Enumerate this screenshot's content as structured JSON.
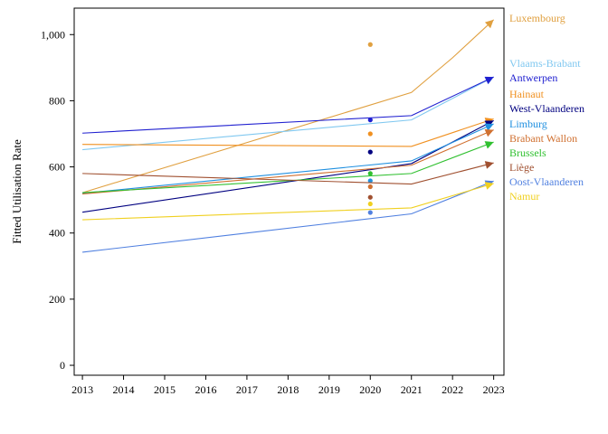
{
  "chart_data": {
    "type": "line",
    "title": "",
    "xlabel": "",
    "ylabel": "Fitted Utilisation Rate",
    "x": [
      2013,
      2014,
      2015,
      2016,
      2017,
      2018,
      2019,
      2020,
      2021,
      2022,
      2023
    ],
    "xlim": [
      2012.8,
      2023.25
    ],
    "ylim": [
      -30,
      1080
    ],
    "yticks": [
      0,
      200,
      400,
      600,
      800,
      1000
    ],
    "ytick_labels": [
      "0",
      "200",
      "400",
      "600",
      "800",
      "1,000"
    ],
    "grid": false,
    "legend": "right",
    "series": [
      {
        "name": "Luxembourg",
        "color": "#e0a040",
        "line": [
          [
            2013,
            522
          ],
          [
            2021,
            825
          ],
          [
            2022,
            930
          ],
          [
            2023,
            1045
          ]
        ],
        "point": [
          2020,
          970
        ]
      },
      {
        "name": "Vlaams-Brabant",
        "color": "#80c8f0",
        "line": [
          [
            2013,
            652
          ],
          [
            2021,
            742
          ],
          [
            2023,
            872
          ]
        ],
        "point": null
      },
      {
        "name": "Antwerpen",
        "color": "#2020d0",
        "line": [
          [
            2013,
            702
          ],
          [
            2021,
            755
          ],
          [
            2023,
            872
          ]
        ],
        "point": [
          2020,
          742
        ]
      },
      {
        "name": "Hainaut",
        "color": "#f09020",
        "line": [
          [
            2013,
            668
          ],
          [
            2021,
            662
          ],
          [
            2023,
            745
          ]
        ],
        "point": [
          2020,
          700
        ]
      },
      {
        "name": "West-Vlaanderen",
        "color": "#000080",
        "line": [
          [
            2013,
            463
          ],
          [
            2021,
            610
          ],
          [
            2023,
            740
          ]
        ],
        "point": [
          2020,
          645
        ]
      },
      {
        "name": "Limburg",
        "color": "#2090e0",
        "line": [
          [
            2013,
            520
          ],
          [
            2021,
            618
          ],
          [
            2023,
            730
          ]
        ],
        "point": [
          2020,
          558
        ]
      },
      {
        "name": "Brabant Wallon",
        "color": "#d07030",
        "line": [
          [
            2013,
            518
          ],
          [
            2021,
            605
          ],
          [
            2023,
            712
          ]
        ],
        "point": [
          2020,
          540
        ]
      },
      {
        "name": "Brussels",
        "color": "#30c030",
        "line": [
          [
            2013,
            522
          ],
          [
            2021,
            580
          ],
          [
            2023,
            675
          ]
        ],
        "point": [
          2020,
          580
        ]
      },
      {
        "name": "Liège",
        "color": "#a05030",
        "line": [
          [
            2013,
            580
          ],
          [
            2021,
            548
          ],
          [
            2023,
            612
          ]
        ],
        "point": [
          2020,
          508
        ]
      },
      {
        "name": "Oost-Vlaanderen",
        "color": "#5080e0",
        "line": [
          [
            2013,
            342
          ],
          [
            2021,
            458
          ],
          [
            2023,
            557
          ]
        ],
        "point": [
          2020,
          462
        ]
      },
      {
        "name": "Namur",
        "color": "#f0d020",
        "line": [
          [
            2013,
            440
          ],
          [
            2021,
            476
          ],
          [
            2023,
            550
          ]
        ],
        "point": [
          2020,
          488
        ]
      }
    ]
  }
}
